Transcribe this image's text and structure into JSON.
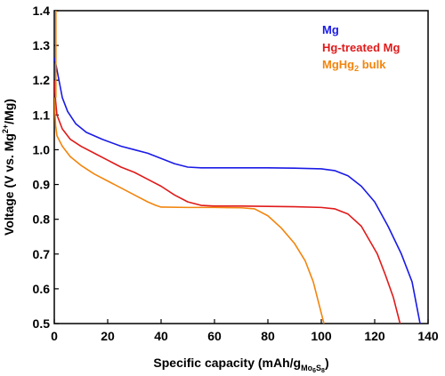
{
  "chart_data": {
    "type": "line",
    "xlabel": {
      "main": "Specific capacity (mAh/g",
      "sub_base": "Mo",
      "sub_1": "6",
      "sub_mid": "S",
      "sub_2": "8",
      "tail": ")"
    },
    "ylabel": {
      "main": "Voltage (V vs. Mg",
      "sup": "2+",
      "tail": "/Mg)"
    },
    "xlim": [
      0,
      140
    ],
    "ylim": [
      0.5,
      1.4
    ],
    "xticks": [
      "0",
      "20",
      "40",
      "60",
      "80",
      "100",
      "120",
      "140"
    ],
    "yticks": [
      "0.5",
      "0.6",
      "0.7",
      "0.8",
      "0.9",
      "1.0",
      "1.1",
      "1.2",
      "1.3",
      "1.4"
    ],
    "grid": false,
    "legend_position": "top-right",
    "series": [
      {
        "name": "Mg",
        "color": "#1a1ae6",
        "points": [
          [
            0,
            1.265
          ],
          [
            0.5,
            1.25
          ],
          [
            1,
            1.23
          ],
          [
            2,
            1.19
          ],
          [
            3,
            1.15
          ],
          [
            5,
            1.11
          ],
          [
            8,
            1.075
          ],
          [
            12,
            1.05
          ],
          [
            18,
            1.03
          ],
          [
            25,
            1.01
          ],
          [
            30,
            1.0
          ],
          [
            35,
            0.99
          ],
          [
            40,
            0.975
          ],
          [
            45,
            0.96
          ],
          [
            50,
            0.95
          ],
          [
            55,
            0.948
          ],
          [
            60,
            0.948
          ],
          [
            70,
            0.948
          ],
          [
            80,
            0.948
          ],
          [
            90,
            0.947
          ],
          [
            100,
            0.945
          ],
          [
            105,
            0.94
          ],
          [
            110,
            0.925
          ],
          [
            115,
            0.895
          ],
          [
            120,
            0.85
          ],
          [
            125,
            0.78
          ],
          [
            130,
            0.7
          ],
          [
            134,
            0.62
          ],
          [
            137,
            0.5
          ]
        ]
      },
      {
        "name": "Hg-treated Mg",
        "color": "#e01a1a",
        "name_legend": "Hg-treated Mg",
        "points": [
          [
            0,
            1.2
          ],
          [
            0.5,
            1.14
          ],
          [
            1,
            1.1
          ],
          [
            3,
            1.06
          ],
          [
            6,
            1.03
          ],
          [
            10,
            1.01
          ],
          [
            15,
            0.99
          ],
          [
            20,
            0.97
          ],
          [
            25,
            0.95
          ],
          [
            30,
            0.935
          ],
          [
            35,
            0.915
          ],
          [
            40,
            0.895
          ],
          [
            45,
            0.87
          ],
          [
            50,
            0.85
          ],
          [
            55,
            0.84
          ],
          [
            60,
            0.838
          ],
          [
            70,
            0.838
          ],
          [
            80,
            0.837
          ],
          [
            90,
            0.836
          ],
          [
            100,
            0.834
          ],
          [
            105,
            0.83
          ],
          [
            110,
            0.815
          ],
          [
            115,
            0.78
          ],
          [
            118,
            0.74
          ],
          [
            121,
            0.7
          ],
          [
            124,
            0.64
          ],
          [
            127,
            0.575
          ],
          [
            129.5,
            0.5
          ]
        ]
      },
      {
        "name": "MgHg",
        "name_sub": "2",
        "name_tail": " bulk",
        "color": "#f2850d",
        "points": [
          [
            0,
            1.15
          ],
          [
            0.5,
            1.07
          ],
          [
            1,
            1.04
          ],
          [
            3,
            1.01
          ],
          [
            6,
            0.98
          ],
          [
            10,
            0.955
          ],
          [
            15,
            0.93
          ],
          [
            20,
            0.91
          ],
          [
            25,
            0.89
          ],
          [
            30,
            0.87
          ],
          [
            35,
            0.85
          ],
          [
            38,
            0.84
          ],
          [
            40,
            0.835
          ],
          [
            50,
            0.834
          ],
          [
            60,
            0.834
          ],
          [
            70,
            0.833
          ],
          [
            75,
            0.83
          ],
          [
            80,
            0.81
          ],
          [
            85,
            0.775
          ],
          [
            90,
            0.73
          ],
          [
            94,
            0.68
          ],
          [
            97,
            0.62
          ],
          [
            99,
            0.56
          ],
          [
            101,
            0.5
          ]
        ]
      }
    ]
  }
}
